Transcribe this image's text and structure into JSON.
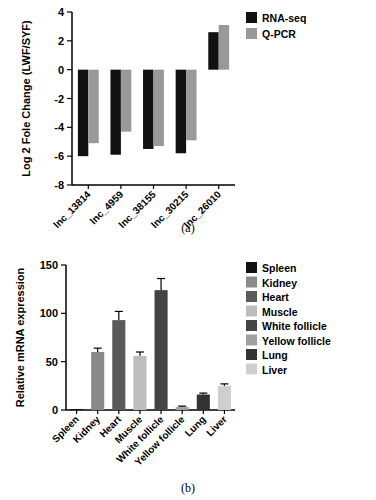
{
  "chart_data": [
    {
      "type": "bar",
      "title": "(a)",
      "y_label": "Log 2 Fole Change (LWF/SYF)",
      "categories": [
        "lnc_13814",
        "lnc_4959",
        "lnc_38155",
        "lnc_30215",
        "lnc_26010"
      ],
      "series": [
        {
          "name": "RNA-seq",
          "color": "#111111",
          "values": [
            -6.0,
            -5.9,
            -5.5,
            -5.8,
            2.6
          ]
        },
        {
          "name": "Q-PCR",
          "color": "#999999",
          "values": [
            -5.1,
            -4.3,
            -5.3,
            -4.9,
            3.1
          ]
        }
      ],
      "ylim": [
        -8,
        4
      ],
      "yticks": [
        -8,
        -6,
        -4,
        -2,
        0,
        2,
        4
      ],
      "legend": "right"
    },
    {
      "type": "bar",
      "title": "(b)",
      "y_label": "Relative mRNA expression",
      "categories": [
        "Spleen",
        "Kidney",
        "Heart",
        "Muscle",
        "White follicle",
        "Yellow follicle",
        "Lung",
        "Liver"
      ],
      "values": [
        1,
        60,
        93,
        56,
        124,
        3,
        16,
        25
      ],
      "errors": [
        0,
        4,
        9,
        4,
        12,
        1,
        1.5,
        2
      ],
      "colors": [
        "#111111",
        "#8a8a8a",
        "#5a5a5a",
        "#bdbdbd",
        "#444444",
        "#a0a0a0",
        "#333333",
        "#cfcfcf"
      ],
      "ylim": [
        0,
        150
      ],
      "yticks": [
        0,
        50,
        100,
        150
      ],
      "legend": "right"
    }
  ]
}
